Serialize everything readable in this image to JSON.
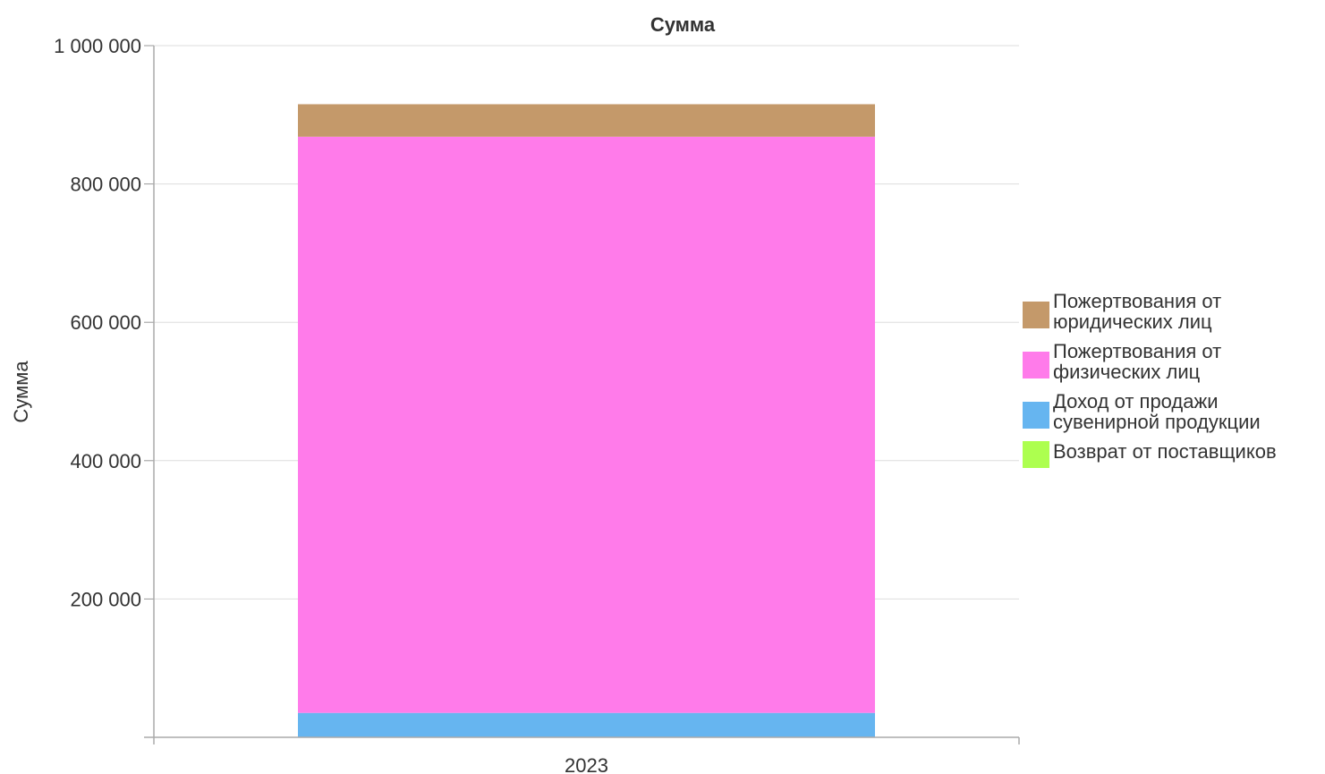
{
  "chart_data": {
    "type": "bar",
    "stacked": true,
    "title": "Сумма",
    "xlabel": "",
    "ylabel": "Сумма",
    "categories": [
      "2023"
    ],
    "ylim": [
      0,
      1000000
    ],
    "yticks": [
      {
        "value": 200000,
        "label": "200 000"
      },
      {
        "value": 400000,
        "label": "400 000"
      },
      {
        "value": 600000,
        "label": "600 000"
      },
      {
        "value": 800000,
        "label": "800 000"
      },
      {
        "value": 1000000,
        "label": "1 000 000"
      }
    ],
    "grid": true,
    "legend_position": "right",
    "series": [
      {
        "name": "Возврат от поставщиков",
        "color": "#adff4f",
        "values": [
          300
        ]
      },
      {
        "name": "Доход от продажи сувенирной продукции",
        "color": "#66b5f0",
        "values": [
          35000
        ]
      },
      {
        "name": "Пожертвования от физических лиц",
        "color": "#ff7bea",
        "values": [
          833000
        ]
      },
      {
        "name": "Пожертвования от юридических лиц",
        "color": "#c4996a",
        "values": [
          47000
        ]
      }
    ],
    "legend_order": [
      {
        "name": "Пожертвования от юридических лиц",
        "color": "#c4996a"
      },
      {
        "name": "Пожертвования от физических лиц",
        "color": "#ff7bea"
      },
      {
        "name": "Доход от продажи сувенирной продукции",
        "color": "#66b5f0"
      },
      {
        "name": "Возврат от поставщиков",
        "color": "#adff4f"
      }
    ]
  }
}
